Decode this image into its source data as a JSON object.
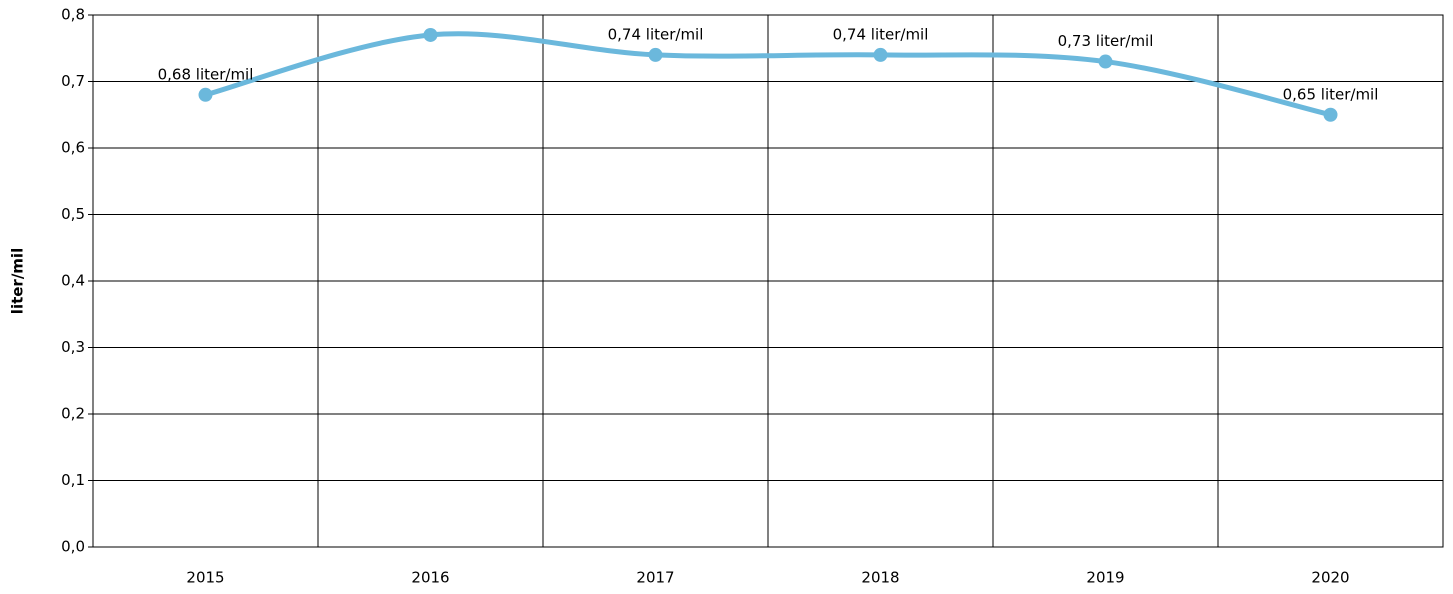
{
  "chart_data": {
    "type": "line",
    "y_label": "liter/mil",
    "categories": [
      "2015",
      "2016",
      "2017",
      "2018",
      "2019",
      "2020"
    ],
    "series": [
      {
        "name": "liter/mil",
        "color": "#6bb8dc",
        "values": [
          0.68,
          0.77,
          0.74,
          0.74,
          0.73,
          0.65
        ],
        "value_labels": [
          "0,68 liter/mil",
          null,
          "0,74 liter/mil",
          "0,74 liter/mil",
          "0,73 liter/mil",
          "0,65 liter/mil"
        ]
      }
    ],
    "ylim": [
      0,
      0.8
    ],
    "yticks": [
      {
        "value": 0,
        "label": "0,0"
      },
      {
        "value": 0.1,
        "label": "0,1"
      },
      {
        "value": 0.2,
        "label": "0,2"
      },
      {
        "value": 0.3,
        "label": "0,3"
      },
      {
        "value": 0.4,
        "label": "0,4"
      },
      {
        "value": 0.5,
        "label": "0,5"
      },
      {
        "value": 0.6,
        "label": "0,6"
      },
      {
        "value": 0.7,
        "label": "0,7"
      },
      {
        "value": 0.8,
        "label": "0,8"
      }
    ],
    "grid": true,
    "smooth": true
  }
}
